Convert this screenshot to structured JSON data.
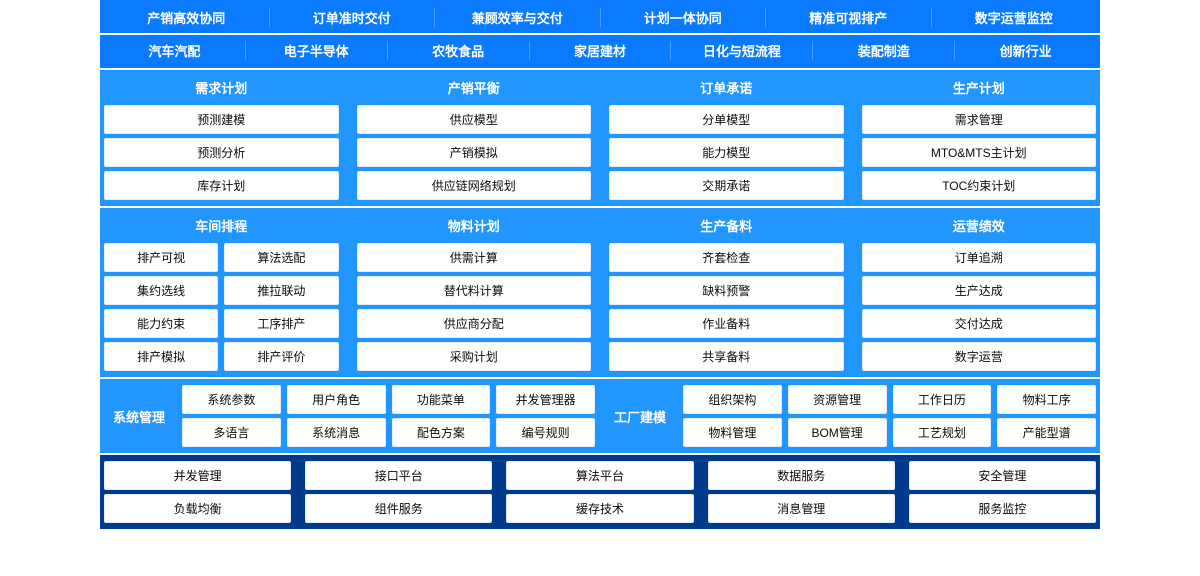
{
  "palette": {
    "band_blue": "#2196ff",
    "header_blue": "#0a7bff",
    "dark_blue": "#003a8c",
    "card_bg": "#ffffff",
    "card_text": "#0a0a0a",
    "gap": 6
  },
  "top_row": [
    "产销高效协同",
    "订单准时交付",
    "兼顾效率与交付",
    "计划一体协同",
    "精准可视排产",
    "数字运营监控"
  ],
  "industry_row": [
    "汽车汽配",
    "电子半导体",
    "农牧食品",
    "家居建材",
    "日化与短流程",
    "装配制造",
    "创新行业"
  ],
  "modules_row1": [
    {
      "title": "需求计划",
      "items": [
        "预测建模",
        "预测分析",
        "库存计划"
      ]
    },
    {
      "title": "产销平衡",
      "items": [
        "供应模型",
        "产销模拟",
        "供应链网络规划"
      ]
    },
    {
      "title": "订单承诺",
      "items": [
        "分单模型",
        "能力模型",
        "交期承诺"
      ]
    },
    {
      "title": "生产计划",
      "items": [
        "需求管理",
        "MTO&MTS主计划",
        "TOC约束计划"
      ]
    }
  ],
  "modules_row2": [
    {
      "title": "车间排程",
      "cols": [
        [
          "排产可视",
          "集约选线",
          "能力约束",
          "排产模拟"
        ],
        [
          "算法选配",
          "推拉联动",
          "工序排产",
          "排产评价"
        ]
      ]
    },
    {
      "title": "物料计划",
      "items": [
        "供需计算",
        "替代料计算",
        "供应商分配",
        "采购计划"
      ]
    },
    {
      "title": "生产备料",
      "items": [
        "齐套检查",
        "缺料预警",
        "作业备料",
        "共享备料"
      ]
    },
    {
      "title": "运营绩效",
      "items": [
        "订单追溯",
        "生产达成",
        "交付达成",
        "数字运营"
      ]
    }
  ],
  "sys_left": {
    "label": "系统管理",
    "rows": [
      [
        "系统参数",
        "用户角色",
        "功能菜单",
        "并发管理器"
      ],
      [
        "多语言",
        "系统消息",
        "配色方案",
        "编号规则"
      ]
    ]
  },
  "sys_right": {
    "label": "工厂建模",
    "rows": [
      [
        "组织架构",
        "资源管理",
        "工作日历",
        "物料工序"
      ],
      [
        "物料管理",
        "BOM管理",
        "工艺规划",
        "产能型谱"
      ]
    ]
  },
  "bottom": [
    [
      "并发管理",
      "接口平台",
      "算法平台",
      "数据服务",
      "安全管理"
    ],
    [
      "负载均衡",
      "组件服务",
      "缓存技术",
      "消息管理",
      "服务监控"
    ]
  ]
}
